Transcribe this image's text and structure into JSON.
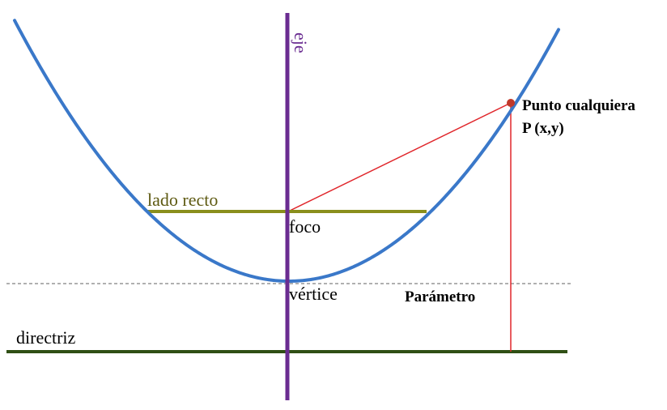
{
  "labels": {
    "axis": "eje",
    "latus_rectum": "lado recto",
    "focus": "foco",
    "vertex": "vértice",
    "parameter": "Parámetro",
    "directrix": "directriz",
    "point_line1": "Punto cualquiera",
    "point_line2": "P (x,y)"
  },
  "colors": {
    "parabola": "#3a78c9",
    "axis": "#6a2c91",
    "latus_rectum": "#8a8f1c",
    "latus_label": "#5e5a12",
    "directrix": "#2f4f14",
    "construction": "#e0262b",
    "point": "#c0392b",
    "vertex_line": "#b0b0b0"
  }
}
